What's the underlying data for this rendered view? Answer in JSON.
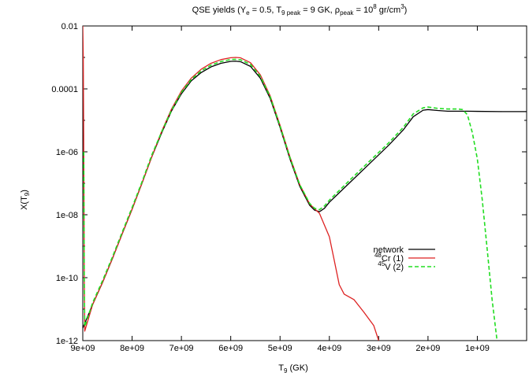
{
  "chart_data": {
    "type": "line",
    "title": {
      "prefix": "QSE yields (Y",
      "sub1": "e",
      "part2": " = 0.5, T",
      "sub2": "9 peak",
      "part3": " = 9 GK, ρ",
      "sub3": "peak",
      "part4": " = 10",
      "sup4": "8",
      "part5": " gr/cm",
      "sup5": "3",
      "suffix": ")"
    },
    "xlabel": {
      "main": "T",
      "sub": "9",
      "rest": " (GK)"
    },
    "ylabel": {
      "main": "X(T",
      "sub": "9",
      "rest": ")"
    },
    "x_reversed": true,
    "xlim": [
      9000000000.0,
      0
    ],
    "y_scale": "log",
    "ylim": [
      1e-12,
      0.01
    ],
    "xticks": [
      {
        "value": 9000000000.0,
        "label": "9e+09"
      },
      {
        "value": 8000000000.0,
        "label": "8e+09"
      },
      {
        "value": 7000000000.0,
        "label": "7e+09"
      },
      {
        "value": 6000000000.0,
        "label": "6e+09"
      },
      {
        "value": 5000000000.0,
        "label": "5e+09"
      },
      {
        "value": 4000000000.0,
        "label": "4e+09"
      },
      {
        "value": 3000000000.0,
        "label": "3e+09"
      },
      {
        "value": 2000000000.0,
        "label": "2e+09"
      },
      {
        "value": 1000000000.0,
        "label": "1e+09"
      }
    ],
    "yticks": [
      {
        "value": 1e-12,
        "label": "1e-12"
      },
      {
        "value": 1e-10,
        "label": "1e-10"
      },
      {
        "value": 1e-08,
        "label": "1e-08"
      },
      {
        "value": 1e-06,
        "label": "1e-06"
      },
      {
        "value": 0.0001,
        "label": "0.0001"
      },
      {
        "value": 0.01,
        "label": "0.01"
      }
    ],
    "grid": false,
    "legend_position": "center-right",
    "series": [
      {
        "name": "network",
        "name_parts": {
          "sup": "",
          "main": "network"
        },
        "color": "#000000",
        "dash": "",
        "width": 1.3,
        "points": [
          [
            9000000000.0,
            2.5e-12
          ],
          [
            8800000000.0,
            1.4e-11
          ],
          [
            8600000000.0,
            7e-11
          ],
          [
            8400000000.0,
            4e-10
          ],
          [
            8200000000.0,
            2.5e-09
          ],
          [
            8000000000.0,
            1.5e-08
          ],
          [
            7800000000.0,
            1e-07
          ],
          [
            7600000000.0,
            7e-07
          ],
          [
            7400000000.0,
            4e-06
          ],
          [
            7200000000.0,
            2e-05
          ],
          [
            7000000000.0,
            7e-05
          ],
          [
            6800000000.0,
            0.00018
          ],
          [
            6600000000.0,
            0.00033
          ],
          [
            6400000000.0,
            0.0005
          ],
          [
            6200000000.0,
            0.00065
          ],
          [
            6000000000.0,
            0.00075
          ],
          [
            5900000000.0,
            0.00076
          ],
          [
            5800000000.0,
            0.00073
          ],
          [
            5600000000.0,
            0.00052
          ],
          [
            5400000000.0,
            0.00022
          ],
          [
            5200000000.0,
            5e-05
          ],
          [
            5000000000.0,
            6e-06
          ],
          [
            4800000000.0,
            6e-07
          ],
          [
            4600000000.0,
            8e-08
          ],
          [
            4400000000.0,
            2e-08
          ],
          [
            4300000000.0,
            1.4e-08
          ],
          [
            4200000000.0,
            1.25e-08
          ],
          [
            4100000000.0,
            1.6e-08
          ],
          [
            4000000000.0,
            2.5e-08
          ],
          [
            3600000000.0,
            1e-07
          ],
          [
            3200000000.0,
            4e-07
          ],
          [
            2800000000.0,
            1.6e-06
          ],
          [
            2500000000.0,
            5e-06
          ],
          [
            2300000000.0,
            1.3e-05
          ],
          [
            2100000000.0,
            2.1e-05
          ],
          [
            2000000000.0,
            2.2e-05
          ],
          [
            1800000000.0,
            2.05e-05
          ],
          [
            1600000000.0,
            1.95e-05
          ],
          [
            1400000000.0,
            1.95e-05
          ],
          [
            1200000000.0,
            1.95e-05
          ],
          [
            1000000000.0,
            1.93e-05
          ],
          [
            500000000.0,
            1.9e-05
          ],
          [
            0,
            1.9e-05
          ]
        ]
      },
      {
        "name": "48Cr (1)",
        "name_parts": {
          "sup": "48",
          "main": "Cr (1)"
        },
        "color": "#dd2222",
        "dash": "",
        "width": 1.3,
        "points": [
          [
            9000000000.0,
            0.01
          ],
          [
            8990000000.0,
            0.001
          ],
          [
            8980000000.0,
            1e-06
          ],
          [
            8970000000.0,
            1e-10
          ],
          [
            8960000000.0,
            2e-12
          ],
          [
            8800000000.0,
            1.4e-11
          ],
          [
            8600000000.0,
            7e-11
          ],
          [
            8400000000.0,
            4e-10
          ],
          [
            8200000000.0,
            2.5e-09
          ],
          [
            8000000000.0,
            1.5e-08
          ],
          [
            7800000000.0,
            1e-07
          ],
          [
            7600000000.0,
            7e-07
          ],
          [
            7400000000.0,
            4.5e-06
          ],
          [
            7200000000.0,
            2.3e-05
          ],
          [
            7000000000.0,
            8.5e-05
          ],
          [
            6800000000.0,
            0.00022
          ],
          [
            6600000000.0,
            0.00042
          ],
          [
            6400000000.0,
            0.00065
          ],
          [
            6200000000.0,
            0.00085
          ],
          [
            6000000000.0,
            0.00098
          ],
          [
            5900000000.0,
            0.001
          ],
          [
            5800000000.0,
            0.00097
          ],
          [
            5600000000.0,
            0.00068
          ],
          [
            5400000000.0,
            0.00028
          ],
          [
            5200000000.0,
            6e-05
          ],
          [
            5000000000.0,
            7e-06
          ],
          [
            4800000000.0,
            7e-07
          ],
          [
            4600000000.0,
            9e-08
          ],
          [
            4400000000.0,
            2.2e-08
          ],
          [
            4200000000.0,
            1.1e-08
          ],
          [
            4000000000.0,
            2e-09
          ],
          [
            3900000000.0,
            3.5e-10
          ],
          [
            3800000000.0,
            6e-11
          ],
          [
            3700000000.0,
            3e-11
          ],
          [
            3500000000.0,
            2e-11
          ],
          [
            3300000000.0,
            8e-12
          ],
          [
            3100000000.0,
            3e-12
          ],
          [
            3000000000.0,
            1e-12
          ]
        ]
      },
      {
        "name": "45V (2)",
        "name_parts": {
          "sup": "45",
          "main": "V (2)"
        },
        "color": "#22dd22",
        "dash": "5,3",
        "width": 1.6,
        "points": [
          [
            8980000000.0,
            1e-06
          ],
          [
            8970000000.0,
            1e-10
          ],
          [
            8960000000.0,
            2.8e-12
          ],
          [
            8800000000.0,
            1.6e-11
          ],
          [
            8600000000.0,
            8e-11
          ],
          [
            8400000000.0,
            4.5e-10
          ],
          [
            8200000000.0,
            2.8e-09
          ],
          [
            8000000000.0,
            1.7e-08
          ],
          [
            7800000000.0,
            1.1e-07
          ],
          [
            7600000000.0,
            8e-07
          ],
          [
            7400000000.0,
            4.3e-06
          ],
          [
            7200000000.0,
            2.1e-05
          ],
          [
            7000000000.0,
            7.7e-05
          ],
          [
            6800000000.0,
            0.0002
          ],
          [
            6600000000.0,
            0.00037
          ],
          [
            6400000000.0,
            0.00057
          ],
          [
            6200000000.0,
            0.00074
          ],
          [
            6000000000.0,
            0.00086
          ],
          [
            5900000000.0,
            0.00087
          ],
          [
            5800000000.0,
            0.00084
          ],
          [
            5600000000.0,
            0.0006
          ],
          [
            5400000000.0,
            0.00025
          ],
          [
            5200000000.0,
            5.6e-05
          ],
          [
            5000000000.0,
            6.6e-06
          ],
          [
            4800000000.0,
            6.6e-07
          ],
          [
            4600000000.0,
            9e-08
          ],
          [
            4400000000.0,
            2.3e-08
          ],
          [
            4300000000.0,
            1.6e-08
          ],
          [
            4200000000.0,
            1.45e-08
          ],
          [
            4100000000.0,
            1.9e-08
          ],
          [
            4000000000.0,
            2.9e-08
          ],
          [
            3600000000.0,
            1.2e-07
          ],
          [
            3200000000.0,
            4.8e-07
          ],
          [
            2800000000.0,
            1.9e-06
          ],
          [
            2500000000.0,
            6e-06
          ],
          [
            2300000000.0,
            1.6e-05
          ],
          [
            2100000000.0,
            2.5e-05
          ],
          [
            2000000000.0,
            2.65e-05
          ],
          [
            1800000000.0,
            2.4e-05
          ],
          [
            1600000000.0,
            2.3e-05
          ],
          [
            1400000000.0,
            2.3e-05
          ],
          [
            1300000000.0,
            2.2e-05
          ],
          [
            1200000000.0,
            1.5e-05
          ],
          [
            1100000000.0,
            4e-06
          ],
          [
            1000000000.0,
            6e-07
          ],
          [
            900000000.0,
            3e-08
          ],
          [
            800000000.0,
            8e-10
          ],
          [
            700000000.0,
            2e-11
          ],
          [
            600000000.0,
            1e-12
          ]
        ]
      }
    ]
  }
}
